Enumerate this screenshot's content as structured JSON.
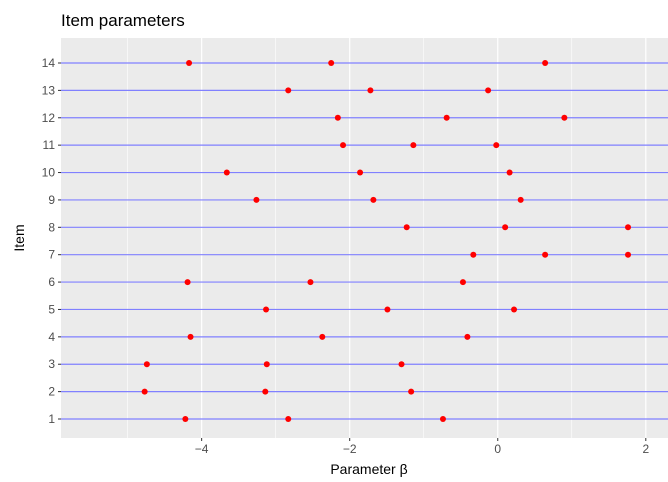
{
  "chart_data": {
    "type": "scatter",
    "title": "Item parameters",
    "xlabel": "Parameter β",
    "ylabel": "Item",
    "xlim": [
      -5.9,
      2.3
    ],
    "xticks": [
      -4,
      -2,
      0,
      2
    ],
    "xtick_labels": [
      "−4",
      "−2",
      "0",
      "2"
    ],
    "categories": [
      "1",
      "2",
      "3",
      "4",
      "5",
      "6",
      "7",
      "8",
      "9",
      "10",
      "11",
      "12",
      "13",
      "14"
    ],
    "grid": true,
    "colors": {
      "panel": "#ebebeb",
      "grid": "#ffffff",
      "line": "#8080ff",
      "point": "#ff0000"
    },
    "items": [
      {
        "item": "1",
        "values": [
          -4.22,
          -2.83,
          -0.74
        ]
      },
      {
        "item": "2",
        "values": [
          -4.77,
          -3.14,
          -1.17
        ]
      },
      {
        "item": "3",
        "values": [
          -4.74,
          -3.12,
          -1.3
        ]
      },
      {
        "item": "4",
        "values": [
          -4.15,
          -2.37,
          -0.41
        ]
      },
      {
        "item": "5",
        "values": [
          -3.13,
          -1.49,
          0.22
        ]
      },
      {
        "item": "6",
        "values": [
          -4.19,
          -2.53,
          -0.47
        ]
      },
      {
        "item": "7",
        "values": [
          -0.33,
          0.64,
          1.76
        ]
      },
      {
        "item": "8",
        "values": [
          -1.23,
          0.1,
          1.76
        ]
      },
      {
        "item": "9",
        "values": [
          -3.26,
          -1.68,
          0.31
        ]
      },
      {
        "item": "10",
        "values": [
          -3.66,
          -1.86,
          0.16
        ]
      },
      {
        "item": "11",
        "values": [
          -2.09,
          -1.14,
          -0.02
        ]
      },
      {
        "item": "12",
        "values": [
          -2.16,
          -0.69,
          0.9
        ]
      },
      {
        "item": "13",
        "values": [
          -2.83,
          -1.72,
          -0.13
        ]
      },
      {
        "item": "14",
        "values": [
          -4.17,
          -2.25,
          0.64
        ]
      }
    ]
  }
}
